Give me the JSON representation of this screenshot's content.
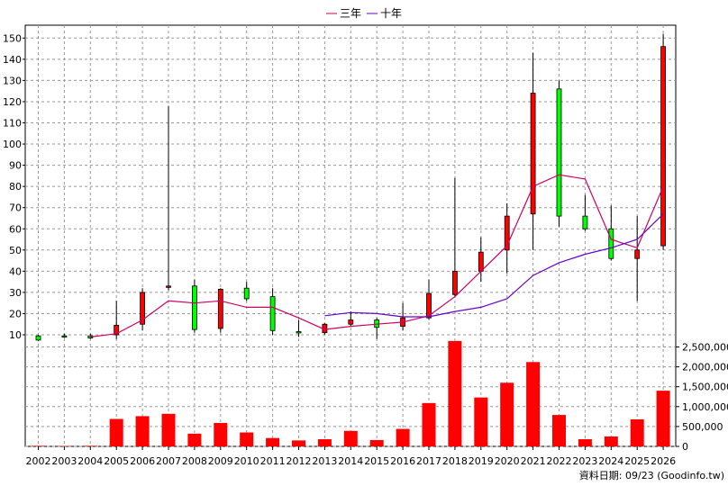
{
  "chart_data": {
    "type": "candlestick",
    "legend": [
      {
        "name": "三年",
        "color": "#cc0066"
      },
      {
        "name": "十年",
        "color": "#6600cc"
      }
    ],
    "price_axis": {
      "ticks": [
        10,
        20,
        30,
        40,
        50,
        60,
        70,
        80,
        90,
        100,
        110,
        120,
        130,
        140,
        150
      ],
      "ylim": [
        5,
        153
      ]
    },
    "volume_axis": {
      "ticks": [
        0,
        500000,
        1000000,
        1500000,
        2000000,
        2500000
      ],
      "tick_labels": [
        "0",
        "500,000",
        "1,000,000",
        "1,500,000",
        "2,000,000",
        "2,500,000"
      ],
      "ylim": [
        0,
        2700000
      ]
    },
    "categories": [
      "2002",
      "2003",
      "2004",
      "2005",
      "2006",
      "2007",
      "2008",
      "2009",
      "2010",
      "2011",
      "2012",
      "2013",
      "2014",
      "2015",
      "2016",
      "2017",
      "2018",
      "2019",
      "2020",
      "2021",
      "2022",
      "2023",
      "2024",
      "2025",
      "2026"
    ],
    "candles": [
      {
        "open": 9.5,
        "close": 7.5,
        "high": 10,
        "low": 7
      },
      {
        "open": 9.5,
        "close": 9,
        "high": 10.5,
        "low": 8.5
      },
      {
        "open": 9.5,
        "close": 8.5,
        "high": 10.5,
        "low": 8
      },
      {
        "open": 10,
        "close": 14.5,
        "high": 26,
        "low": 8
      },
      {
        "open": 15,
        "close": 30,
        "high": 32,
        "low": 12
      },
      {
        "open": 32.5,
        "close": 33,
        "high": 118,
        "low": 31
      },
      {
        "open": 33,
        "close": 12.5,
        "high": 36,
        "low": 11
      },
      {
        "open": 13,
        "close": 31.5,
        "high": 32,
        "low": 11
      },
      {
        "open": 32,
        "close": 27,
        "high": 35,
        "low": 26
      },
      {
        "open": 28,
        "close": 12,
        "high": 32,
        "low": 10
      },
      {
        "open": 11.5,
        "close": 11,
        "high": 17,
        "low": 9
      },
      {
        "open": 11,
        "close": 15,
        "high": 15.5,
        "low": 10
      },
      {
        "open": 15,
        "close": 17,
        "high": 21,
        "low": 14
      },
      {
        "open": 17,
        "close": 13.5,
        "high": 18,
        "low": 8
      },
      {
        "open": 14,
        "close": 18,
        "high": 25,
        "low": 12
      },
      {
        "open": 18,
        "close": 29.5,
        "high": 36,
        "low": 17
      },
      {
        "open": 29,
        "close": 40,
        "high": 84,
        "low": 28
      },
      {
        "open": 40,
        "close": 49,
        "high": 56,
        "low": 35
      },
      {
        "open": 50,
        "close": 66,
        "high": 72,
        "low": 39
      },
      {
        "open": 67,
        "close": 124,
        "high": 143,
        "low": 50
      },
      {
        "open": 126,
        "close": 66,
        "high": 130,
        "low": 61
      },
      {
        "open": 66,
        "close": 60,
        "high": 76,
        "low": 59
      },
      {
        "open": 60,
        "close": 46,
        "high": 71,
        "low": 45
      },
      {
        "open": 46,
        "close": 50,
        "high": 66,
        "low": 26
      },
      {
        "open": 52,
        "close": 146,
        "high": 152,
        "low": 50
      }
    ],
    "series": [
      {
        "name": "三年",
        "values": [
          null,
          null,
          9,
          10.5,
          17,
          26,
          25,
          26,
          23,
          23,
          18,
          12.5,
          14,
          15,
          16,
          19,
          28,
          40,
          52,
          80,
          85.5,
          83.5,
          55,
          51,
          80
        ]
      },
      {
        "name": "十年",
        "values": [
          null,
          null,
          null,
          null,
          null,
          null,
          null,
          null,
          null,
          null,
          null,
          19,
          20.5,
          20,
          18.5,
          18.5,
          21,
          23,
          27,
          38,
          44,
          48,
          51,
          55,
          67
        ]
      }
    ],
    "volume": [
      15000,
      10000,
      15000,
      690000,
      760000,
      820000,
      320000,
      590000,
      350000,
      210000,
      150000,
      180000,
      390000,
      160000,
      440000,
      1090000,
      2650000,
      1230000,
      1600000,
      2120000,
      790000,
      180000,
      250000,
      680000,
      1400000
    ],
    "footer": "資料日期: 09/23  (Goodinfo.tw)"
  }
}
